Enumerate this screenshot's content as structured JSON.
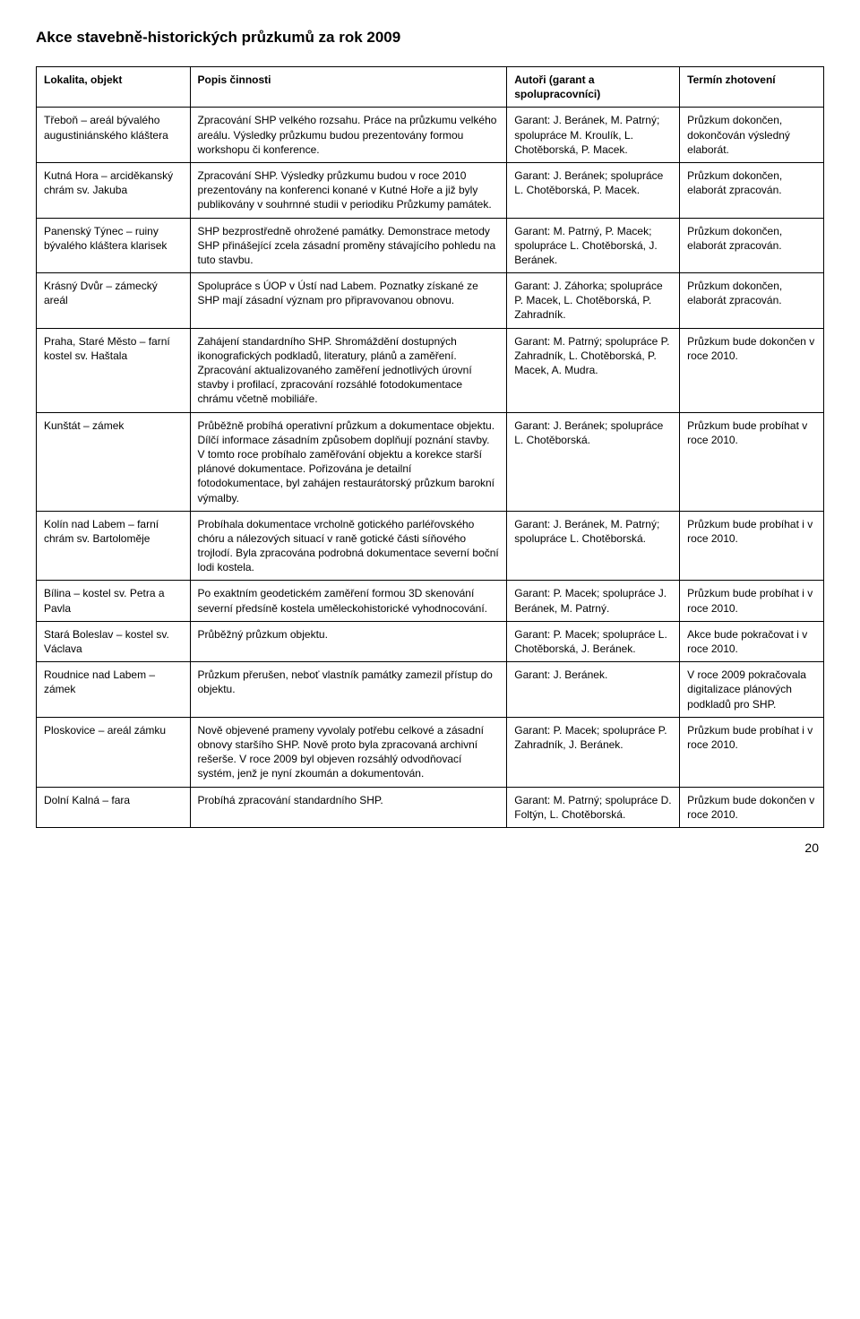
{
  "title": "Akce stavebně-historických průzkumů za rok 2009",
  "columns": [
    "Lokalita, objekt",
    "Popis činnosti",
    "Autoři (garant a spolupracovníci)",
    "Termín zhotovení"
  ],
  "rows": [
    {
      "c0": "Třeboň – areál bývalého augustiniánského kláštera",
      "c1": "Zpracování SHP velkého rozsahu. Práce na průzkumu velkého areálu. Výsledky průzkumu budou prezentovány formou workshopu či konference.",
      "c2": "Garant: J. Beránek, M. Patrný; spolupráce M. Kroulík, L. Chotěborská, P. Macek.",
      "c3": "Průzkum dokončen, dokončován výsledný elaborát."
    },
    {
      "c0": "Kutná Hora – arciděkanský chrám sv. Jakuba",
      "c1": "Zpracování SHP. Výsledky průzkumu budou v roce 2010 prezentovány na konferenci konané v Kutné Hoře a již byly publikovány v souhrnné studii v periodiku Průzkumy památek.",
      "c2": "Garant: J. Beránek; spolupráce L. Chotěborská, P. Macek.",
      "c3": "Průzkum dokončen, elaborát zpracován."
    },
    {
      "c0": "Panenský Týnec – ruiny bývalého kláštera klarisek",
      "c1": "SHP bezprostředně ohrožené památky. Demonstrace metody SHP přinášející zcela zásadní proměny stávajícího pohledu na tuto stavbu.",
      "c2": "Garant: M. Patrný, P. Macek; spolupráce L. Chotěborská, J. Beránek.",
      "c3": "Průzkum dokončen, elaborát zpracován."
    },
    {
      "c0": "Krásný Dvůr – zámecký areál",
      "c1": "Spolupráce s ÚOP v Ústí nad Labem. Poznatky získané ze SHP mají zásadní význam pro připravovanou obnovu.",
      "c2": "Garant: J. Záhorka; spolupráce P. Macek, L. Chotěborská, P. Zahradník.",
      "c3": "Průzkum dokončen, elaborát zpracován."
    },
    {
      "c0": "Praha, Staré Město – farní kostel sv. Haštala",
      "c1": "Zahájení standardního SHP. Shromáždění dostupných ikonografických podkladů, literatury, plánů a zaměření. Zpracování aktualizovaného zaměření jednotlivých úrovní stavby i profilací, zpracování rozsáhlé fotodokumentace chrámu včetně mobiliáře.",
      "c2": "Garant: M. Patrný; spolupráce P. Zahradník, L. Chotěborská, P. Macek, A. Mudra.",
      "c3": "Průzkum bude dokončen v roce 2010."
    },
    {
      "c0": "Kunštát – zámek",
      "c1": "Průběžně probíhá operativní průzkum a dokumentace objektu. Dílčí informace zásadním způsobem doplňují poznání stavby. V tomto roce probíhalo zaměřování objektu a korekce starší plánové dokumentace. Pořizována je detailní fotodokumentace, byl zahájen restaurátorský průzkum barokní výmalby.",
      "c2": "Garant: J. Beránek; spolupráce L. Chotěborská.",
      "c3": "Průzkum bude probíhat v roce 2010."
    },
    {
      "c0": "Kolín nad Labem – farní chrám sv. Bartoloměje",
      "c1": "Probíhala dokumentace vrcholně gotického parléřovského chóru a nálezových situací v raně gotické části síňového trojlodí. Byla zpracována podrobná dokumentace severní boční lodi kostela.",
      "c2": "Garant: J. Beránek, M. Patrný; spolupráce L. Chotěborská.",
      "c3": "Průzkum bude probíhat i v roce 2010."
    },
    {
      "c0": "Bílina – kostel sv. Petra a Pavla",
      "c1": "Po exaktním geodetickém zaměření formou 3D skenování severní předsíně kostela uměleckohistorické vyhodnocování.",
      "c2": "Garant: P. Macek; spolupráce J. Beránek, M. Patrný.",
      "c3": "Průzkum bude probíhat i v roce 2010."
    },
    {
      "c0": "Stará Boleslav – kostel sv. Václava",
      "c1": "Průběžný průzkum objektu.",
      "c2": "Garant: P. Macek; spolupráce L. Chotěborská, J. Beránek.",
      "c3": "Akce bude pokračovat i v roce 2010."
    },
    {
      "c0": "Roudnice nad Labem – zámek",
      "c1": "Průzkum přerušen, neboť vlastník památky zamezil přístup do objektu.",
      "c2": "Garant: J. Beránek.",
      "c3": "V roce 2009 pokračovala digitalizace plánových podkladů pro SHP."
    },
    {
      "c0": "Ploskovice – areál zámku",
      "c1": "Nově objevené prameny vyvolaly potřebu celkové a zásadní obnovy staršího SHP. Nově proto byla zpracovaná archivní rešerše. V roce 2009 byl objeven rozsáhlý odvodňovací systém, jenž je nyní zkoumán a dokumentován.",
      "c2": "Garant: P. Macek; spolupráce P. Zahradník, J. Beránek.",
      "c3": "Průzkum bude probíhat i v roce 2010."
    },
    {
      "c0": "Dolní Kalná – fara",
      "c1": "Probíhá zpracování standardního SHP.",
      "c2": "Garant: M. Patrný; spolupráce D. Foltýn, L. Chotěborská.",
      "c3": "Průzkum bude dokončen v roce 2010."
    }
  ],
  "page_number": "20"
}
